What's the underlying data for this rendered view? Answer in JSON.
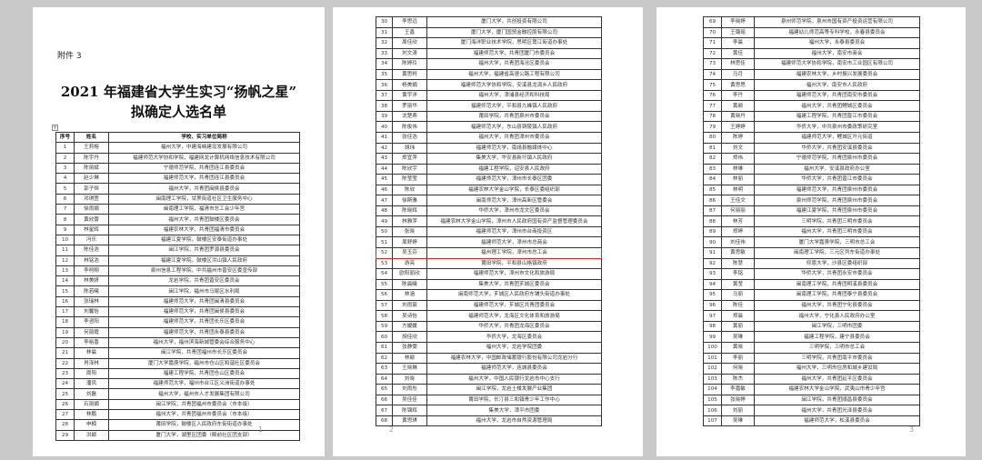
{
  "attachment_label": "附件 3",
  "title_line1": "2021 年福建省大学生实习“扬帆之星”",
  "title_line2": "拟确定人选名单",
  "headers": [
    "序号",
    "姓名",
    "学校、实习单位简称"
  ],
  "highlighted_no": "52",
  "page_numbers": [
    "1",
    "2",
    "3"
  ],
  "pages": [
    [
      [
        "1",
        "王莉榕",
        "福州大学，中建海峡建设发展有限公司"
      ],
      [
        "2",
        "陈宇丹",
        "福建师范大学协和学院，福建网龙计算机网络信息技术有限公司"
      ],
      [
        "3",
        "陈丽斌",
        "宁德师范学院，共青团连江县委员会"
      ],
      [
        "4",
        "赵少琳",
        "福建师范大学，共青团连江县委员会"
      ],
      [
        "5",
        "郭子恒",
        "福州大学，共青团闽侯县委员会"
      ],
      [
        "6",
        "邓琪萱",
        "闽南理工学院，甘蔗街道社区卫生服务中心"
      ],
      [
        "7",
        "徐雨娟",
        "闽南理工学院，福清市总工会少年宫"
      ],
      [
        "8",
        "黄欣蕾",
        "福州大学，共青团鼓楼区委员会"
      ],
      [
        "9",
        "林星辉",
        "福建农林大学，共青团福清市委员会"
      ],
      [
        "10",
        "冯乐",
        "福建江夏学院，鼓楼区安泰街道办事处"
      ],
      [
        "11",
        "陈佳浩",
        "闽江学院，共青团罗源县委员会"
      ],
      [
        "12",
        "林铭浩",
        "福建江夏学院，鼓楼区洪山镇人民政府"
      ],
      [
        "13",
        "李柯翔",
        "泉州信息工程学院，中共福州市晋安区委宣传部"
      ],
      [
        "14",
        "林美妍",
        "龙岩学院，共青团晋安区委员会"
      ],
      [
        "15",
        "陈若曦",
        "闽江学院，福州市马尾区水利局"
      ],
      [
        "16",
        "张瑞林",
        "福建师范大学，共青团闽清县委员会"
      ],
      [
        "17",
        "刘馨怡",
        "福建师范大学，共青团闽侯县委员会"
      ],
      [
        "18",
        "李咨阳",
        "福建师范大学，共青团长乐区委员会"
      ],
      [
        "19",
        "何丽霞",
        "福建师范大学，共青团永泰县委员会"
      ],
      [
        "20",
        "李裕香",
        "福州大学，福州滨海新城管委会综合服务中心"
      ],
      [
        "21",
        "林晨",
        "闽江学院，共青团福州市长乐区委员会"
      ],
      [
        "22",
        "肖泽林",
        "厦门大学嘉庚学院，福州市仓山区和谐社区委员会"
      ],
      [
        "23",
        "周阳",
        "福建工程学院，共青团仓山区委员会"
      ],
      [
        "24",
        "潘凤",
        "福建师范大学，福州市台江区义洲街道办事处"
      ],
      [
        "25",
        "刘磊",
        "福州大学，福州市人才发展集团有限公司"
      ],
      [
        "26",
        "石丽娟",
        "闽江学院，共青团福州市委员会（市本级）"
      ],
      [
        "27",
        "林鹏",
        "福州大学，共青团福州市委员会（市本级）"
      ],
      [
        "28",
        "申楠",
        "莆田学院，鼓楼区人民政府东街街道办事处"
      ],
      [
        "29",
        "洪颖",
        "厦门大学，湖里区团委（殿前社区团支部）"
      ]
    ],
    [
      [
        "30",
        "李思远",
        "厦门大学，共创投资有限公司"
      ],
      [
        "31",
        "王鑫",
        "厦门大学，厦门国贸金融控股有限公司"
      ],
      [
        "32",
        "周佳欣",
        "厦门海洋职业技术学院，思明区鹭江街道办事处"
      ],
      [
        "33",
        "刘文涛",
        "福建师范大学，共青团厦门市委员会"
      ],
      [
        "34",
        "陈婷玲",
        "福州大学，共青团海沧区委员会"
      ],
      [
        "35",
        "黄思柯",
        "福州大学，福建省高速公路工程有限公司"
      ],
      [
        "36",
        "杨美娟",
        "福建师范大学协和学院，安溪县龙涓乡人民政府"
      ],
      [
        "37",
        "黄宇洋",
        "福州大学，漳浦县经济和科技局"
      ],
      [
        "38",
        "罗丽华",
        "福建师范大学，平和县九峰镇人民政府"
      ],
      [
        "39",
        "沈楚燕",
        "莆田学院，共青团泉州市委员会"
      ],
      [
        "40",
        "陈俊伟",
        "福建师范大学，东山县铜陵镇人民政府"
      ],
      [
        "41",
        "张佳浩",
        "福州大学，共青团漳州市委员会"
      ],
      [
        "42",
        "胡玮",
        "福建师范大学，南靖县融媒体中心"
      ],
      [
        "43",
        "郑宜萍",
        "集美大学，华安县新圩镇人民政府"
      ],
      [
        "44",
        "陈欣宇",
        "福建工程学院，诏安县人民政府"
      ],
      [
        "45",
        "陈莹莹",
        "福建师范大学，漳州市长泰区团委"
      ],
      [
        "46",
        "陈欣",
        "福建农林大学金山学院，长泰区委组织部"
      ],
      [
        "47",
        "徐斯雅",
        "闽南师范大学，漳州高新区管委会"
      ],
      [
        "48",
        "陈晓辉",
        "华侨大学，漳州市龙文区委员会"
      ],
      [
        "49",
        "林雅萍",
        "福建农林大学金山学院，漳州市人民政府国有资产监督管理委员会"
      ],
      [
        "50",
        "张晓",
        "福建师范大学，漳州市台商投资区"
      ],
      [
        "51",
        "周舒婷",
        "福建师范大学，漳州市总商会"
      ],
      [
        "52",
        "吴玉芬",
        "福州理工学院，漳州市总工会"
      ],
      [
        "53",
        "游亮",
        "莆田学院，平和县山格镇政府"
      ],
      [
        "54",
        "欧阳丽欣",
        "福建师范大学，漳州市文化和旅游局"
      ],
      [
        "55",
        "陈晨曦",
        "集美大学，共青团芗城区委员会"
      ],
      [
        "56",
        "林涵",
        "闽南师范大学，芗城区人民政府东铺头街道办事处"
      ],
      [
        "57",
        "刘雨宸",
        "福建师范大学，芗城区共青团委员会"
      ],
      [
        "58",
        "吴诗怡",
        "福建师范大学，龙海区文化体育和旅游局"
      ],
      [
        "59",
        "方媛媛",
        "华侨大学，共青团龙海区委员会"
      ],
      [
        "60",
        "胡佳欣",
        "华侨大学，龙海区委员会"
      ],
      [
        "61",
        "张静雯",
        "福州大学，龙岩学院团委"
      ],
      [
        "62",
        "林颖",
        "福建农林大学，中国邮政储蓄银行股份有限公司龙岩分行"
      ],
      [
        "63",
        "王晓琳",
        "福建师范大学，连城县委员会"
      ],
      [
        "64",
        "刘晓",
        "福州大学，中国人民银行龙岩市中心支行"
      ],
      [
        "65",
        "刘雨彤",
        "闽江学院，龙岩土楼发展产业集团"
      ],
      [
        "66",
        "吴佳佳",
        "莆田学院，长汀县三和镇青少年工作中心"
      ],
      [
        "67",
        "陈锦辉",
        "集美大学，漳平市团委"
      ],
      [
        "68",
        "黄思琪",
        "福州大学，龙岩市自然资源管理局"
      ]
    ],
    [
      [
        "69",
        "李晓婷",
        "泉州师范学院，泉州市国有资产投资运营有限公司"
      ],
      [
        "70",
        "王璐瑶",
        "福建幼儿师范高等专科学校，永春县委员会"
      ],
      [
        "71",
        "李晨",
        "福州大学，永泰县委员会"
      ],
      [
        "72",
        "黄佳",
        "福州大学，南安市商会"
      ],
      [
        "73",
        "林思佳",
        "福建师范大学协和学院，南安市工业园区有限公司"
      ],
      [
        "74",
        "马月",
        "福建农林大学，乡村振兴发展委员会"
      ],
      [
        "75",
        "黄思思",
        "福州大学，南安市人民政府"
      ],
      [
        "76",
        "李丹",
        "福建师范大学，共青团南安市委员会"
      ],
      [
        "77",
        "黄颖",
        "福州大学，共青团鲤城区委员会"
      ],
      [
        "78",
        "黄晓丹",
        "福建工程学院，共青团晋江市委员会"
      ],
      [
        "79",
        "王婷婷",
        "华侨大学，中共泉州市委政策研究室"
      ],
      [
        "80",
        "陈婷",
        "福建师范大学，鲤城区开元街道"
      ],
      [
        "81",
        "刘文",
        "华侨大学，共青团安溪县委员会"
      ],
      [
        "82",
        "郑伟",
        "宁德师范学院，共青团泉州市委员会"
      ],
      [
        "83",
        "林琳",
        "福州大学，安溪县政府办公室"
      ],
      [
        "84",
        "林丽",
        "华侨大学，共青团晋江市委员会"
      ],
      [
        "85",
        "林明",
        "福建师范大学，共青团泉州市委员会"
      ],
      [
        "86",
        "王佳文",
        "泉州师范学院，共青团泉州市委员会"
      ],
      [
        "87",
        "何丽丽",
        "福建江夏学院，共青团泉州市委员会"
      ],
      [
        "88",
        "林芳",
        "三明学院，共青团三明市委员会"
      ],
      [
        "89",
        "郑婷",
        "福州大学，共青团三明市委员会"
      ],
      [
        "90",
        "刘佳伟",
        "厦门大学嘉庚学院，三明市总工会"
      ],
      [
        "91",
        "黄思敏",
        "闽南理工学院，三元区列东街道办事处"
      ],
      [
        "92",
        "陈慧",
        "仰恩大学，沙县区委组织部"
      ],
      [
        "93",
        "李铭",
        "华侨大学，共青团永安市委员会"
      ],
      [
        "94",
        "黄莹",
        "闽南理工学院，共青团明溪县委员会"
      ],
      [
        "95",
        "马丽",
        "闽南理工学院，共青团泰宁县委员会"
      ],
      [
        "96",
        "陈佳",
        "福州大学，共青团宁化县委员会"
      ],
      [
        "97",
        "郑晨",
        "福州大学，宁化县人民政府办公室"
      ],
      [
        "98",
        "黄丽",
        "闽江学院，三明市团委"
      ],
      [
        "99",
        "吴琳",
        "福建工程学院，建宁县委员会"
      ],
      [
        "100",
        "黄晓",
        "三明学院，三明市总工会"
      ],
      [
        "101",
        "李丽",
        "三明学院，共青团南平市委员会"
      ],
      [
        "102",
        "何晓",
        "福州大学，三明市住房和城乡建设局"
      ],
      [
        "103",
        "陈杰",
        "福州大学，共青团延平区委员会"
      ],
      [
        "104",
        "李嘉敏",
        "福建农林大学金山学院，武夷山市青少年宫"
      ],
      [
        "105",
        "张晓婷",
        "闽江学院，共青团顺昌县委员会"
      ],
      [
        "106",
        "刘丽",
        "福州大学，共青团光泽县委员会"
      ],
      [
        "107",
        "吴琳",
        "福建师范大学，松溪县委员会"
      ]
    ]
  ]
}
